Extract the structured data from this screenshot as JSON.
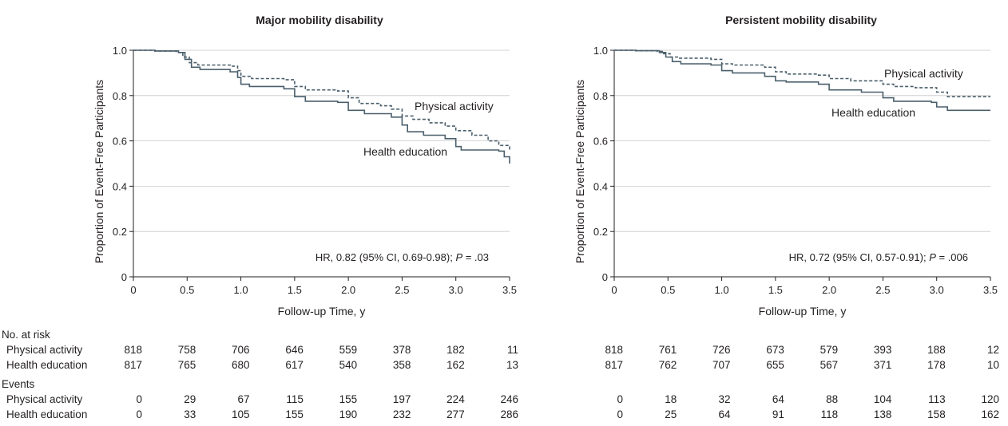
{
  "chart_data": [
    {
      "type": "line",
      "title": "Major mobility disability",
      "xlabel": "Follow-up Time, y",
      "ylabel": "Proportion of Event-Free Participants",
      "xlim": [
        0,
        3.5
      ],
      "ylim": [
        0,
        1.0
      ],
      "xticks": [
        "0",
        "0.5",
        "1.0",
        "1.5",
        "2.0",
        "2.5",
        "3.0",
        "3.5"
      ],
      "yticks": [
        "0",
        "0.2",
        "0.4",
        "0.6",
        "0.8",
        "1.0"
      ],
      "grid": "horizontal",
      "annotation": {
        "prefix": "HR, 0.82 (95% CI, 0.69-0.98); ",
        "pvar": "P",
        "suffix": " = .03"
      },
      "series": [
        {
          "name": "Physical activity",
          "style": "dashed",
          "color": "#4a5f6b",
          "points": [
            [
              0,
              1.0
            ],
            [
              0.2,
              0.997
            ],
            [
              0.4,
              0.99
            ],
            [
              0.46,
              0.97
            ],
            [
              0.52,
              0.945
            ],
            [
              0.6,
              0.935
            ],
            [
              0.9,
              0.93
            ],
            [
              0.97,
              0.91
            ],
            [
              1.0,
              0.885
            ],
            [
              1.1,
              0.875
            ],
            [
              1.4,
              0.87
            ],
            [
              1.5,
              0.84
            ],
            [
              1.6,
              0.825
            ],
            [
              1.9,
              0.82
            ],
            [
              2.0,
              0.79
            ],
            [
              2.1,
              0.765
            ],
            [
              2.3,
              0.755
            ],
            [
              2.4,
              0.74
            ],
            [
              2.5,
              0.71
            ],
            [
              2.6,
              0.695
            ],
            [
              2.75,
              0.68
            ],
            [
              2.9,
              0.665
            ],
            [
              3.0,
              0.645
            ],
            [
              3.15,
              0.625
            ],
            [
              3.3,
              0.6
            ],
            [
              3.4,
              0.58
            ],
            [
              3.5,
              0.56
            ]
          ]
        },
        {
          "name": "Health education",
          "style": "solid",
          "color": "#4a5f6b",
          "points": [
            [
              0,
              1.0
            ],
            [
              0.2,
              0.997
            ],
            [
              0.42,
              0.99
            ],
            [
              0.48,
              0.96
            ],
            [
              0.54,
              0.925
            ],
            [
              0.62,
              0.915
            ],
            [
              0.9,
              0.905
            ],
            [
              0.97,
              0.88
            ],
            [
              1.0,
              0.85
            ],
            [
              1.08,
              0.84
            ],
            [
              1.4,
              0.83
            ],
            [
              1.5,
              0.795
            ],
            [
              1.6,
              0.775
            ],
            [
              1.9,
              0.77
            ],
            [
              2.0,
              0.735
            ],
            [
              2.15,
              0.72
            ],
            [
              2.4,
              0.705
            ],
            [
              2.5,
              0.67
            ],
            [
              2.55,
              0.64
            ],
            [
              2.7,
              0.625
            ],
            [
              2.9,
              0.61
            ],
            [
              3.0,
              0.575
            ],
            [
              3.05,
              0.56
            ],
            [
              3.4,
              0.555
            ],
            [
              3.45,
              0.53
            ],
            [
              3.5,
              0.5
            ]
          ]
        }
      ],
      "risk_table": {
        "no_at_risk": {
          "Physical activity": [
            "818",
            "758",
            "706",
            "646",
            "559",
            "378",
            "182",
            "11"
          ],
          "Health education": [
            "817",
            "765",
            "680",
            "617",
            "540",
            "358",
            "162",
            "13"
          ]
        },
        "events": {
          "Physical activity": [
            "0",
            "29",
            "67",
            "115",
            "155",
            "197",
            "224",
            "246"
          ],
          "Health education": [
            "0",
            "33",
            "105",
            "155",
            "190",
            "232",
            "277",
            "286"
          ]
        }
      }
    },
    {
      "type": "line",
      "title": "Persistent mobility disability",
      "xlabel": "Follow-up Time, y",
      "ylabel": "Proportion of Event-Free Participants",
      "xlim": [
        0,
        3.5
      ],
      "ylim": [
        0,
        1.0
      ],
      "xticks": [
        "0",
        "0.5",
        "1.0",
        "1.5",
        "2.0",
        "2.5",
        "3.0",
        "3.5"
      ],
      "yticks": [
        "0",
        "0.2",
        "0.4",
        "0.6",
        "0.8",
        "1.0"
      ],
      "grid": "horizontal",
      "annotation": {
        "prefix": "HR, 0.72 (95% CI, 0.57-0.91); ",
        "pvar": "P",
        "suffix": " = .006"
      },
      "series": [
        {
          "name": "Physical activity",
          "style": "dashed",
          "color": "#4a5f6b",
          "points": [
            [
              0,
              1.0
            ],
            [
              0.2,
              0.998
            ],
            [
              0.4,
              0.995
            ],
            [
              0.46,
              0.985
            ],
            [
              0.52,
              0.97
            ],
            [
              0.6,
              0.965
            ],
            [
              0.9,
              0.96
            ],
            [
              1.0,
              0.94
            ],
            [
              1.1,
              0.935
            ],
            [
              1.4,
              0.925
            ],
            [
              1.5,
              0.905
            ],
            [
              1.6,
              0.895
            ],
            [
              1.9,
              0.89
            ],
            [
              2.0,
              0.875
            ],
            [
              2.2,
              0.865
            ],
            [
              2.5,
              0.85
            ],
            [
              2.6,
              0.84
            ],
            [
              2.8,
              0.835
            ],
            [
              3.0,
              0.815
            ],
            [
              3.1,
              0.795
            ],
            [
              3.5,
              0.795
            ]
          ]
        },
        {
          "name": "Health education",
          "style": "solid",
          "color": "#4a5f6b",
          "points": [
            [
              0,
              1.0
            ],
            [
              0.2,
              0.998
            ],
            [
              0.42,
              0.99
            ],
            [
              0.48,
              0.97
            ],
            [
              0.54,
              0.95
            ],
            [
              0.62,
              0.94
            ],
            [
              0.9,
              0.935
            ],
            [
              1.0,
              0.91
            ],
            [
              1.1,
              0.9
            ],
            [
              1.4,
              0.885
            ],
            [
              1.5,
              0.865
            ],
            [
              1.6,
              0.86
            ],
            [
              1.9,
              0.85
            ],
            [
              2.0,
              0.825
            ],
            [
              2.3,
              0.815
            ],
            [
              2.5,
              0.79
            ],
            [
              2.6,
              0.775
            ],
            [
              2.95,
              0.77
            ],
            [
              3.0,
              0.75
            ],
            [
              3.1,
              0.735
            ],
            [
              3.5,
              0.735
            ]
          ]
        }
      ],
      "risk_table": {
        "no_at_risk": {
          "Physical activity": [
            "818",
            "761",
            "726",
            "673",
            "579",
            "393",
            "188",
            "12"
          ],
          "Health education": [
            "817",
            "762",
            "707",
            "655",
            "567",
            "371",
            "178",
            "10"
          ]
        },
        "events": {
          "Physical activity": [
            "0",
            "18",
            "32",
            "64",
            "88",
            "104",
            "113",
            "120"
          ],
          "Health education": [
            "0",
            "25",
            "64",
            "91",
            "118",
            "138",
            "158",
            "162"
          ]
        }
      }
    }
  ],
  "risk_table_labels": {
    "no_at_risk": "No. at risk",
    "events": "Events",
    "groups": [
      "Physical activity",
      "Health education"
    ]
  }
}
